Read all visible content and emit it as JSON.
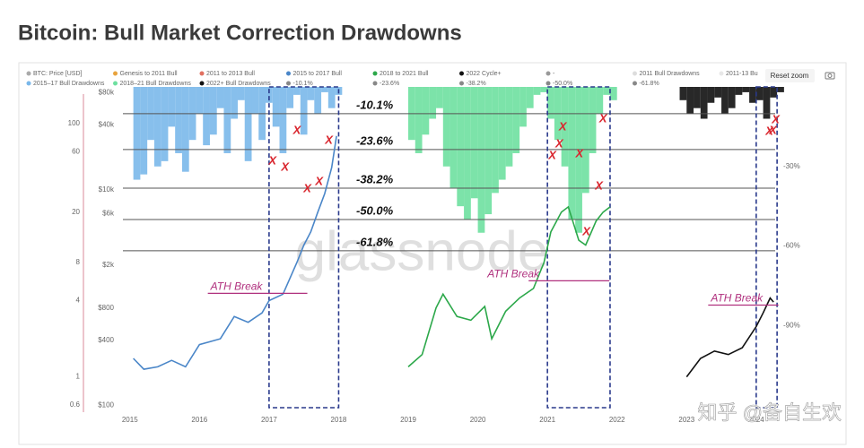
{
  "chart_data": {
    "type": "line",
    "title": "Bitcoin: Bull Market Correction Drawdowns",
    "reset_zoom": "Reset zoom",
    "watermark": "glassnode",
    "credit": "知乎 @备自生欢",
    "legend": [
      {
        "name": "BTC: Price [USD]",
        "color": "#aaaaaa"
      },
      {
        "name": "Genesis to 2011 Bull",
        "color": "#e8a33d"
      },
      {
        "name": "2011 to 2013 Bull",
        "color": "#e07060"
      },
      {
        "name": "2015 to 2017 Bull",
        "color": "#4a86c8"
      },
      {
        "name": "2018 to 2021 Bull",
        "color": "#2ca84a"
      },
      {
        "name": "2022 Cycle+",
        "color": "#111111"
      },
      {
        "name": "-",
        "color": "#999999"
      },
      {
        "name": "2011 Bull Drawdowns",
        "color": "#dddddd"
      },
      {
        "name": "2011-13 Bu",
        "color": "#e8e8e8"
      },
      {
        "name": "2015–17 Bull Drawdowns",
        "color": "#7ab8ea"
      },
      {
        "name": "2018–21 Bull Drawdowns",
        "color": "#6ee0a0"
      },
      {
        "name": "2022+ Bull Drawdowns",
        "color": "#111111"
      },
      {
        "name": "-10.1%",
        "color": "#888888"
      },
      {
        "name": "-23.6%",
        "color": "#888888"
      },
      {
        "name": "-38.2%",
        "color": "#888888"
      },
      {
        "name": "-50.0%",
        "color": "#888888"
      },
      {
        "name": "-61.8%",
        "color": "#888888"
      }
    ],
    "xlim": [
      2014.9,
      2024.35
    ],
    "xticks": [
      2015,
      2016,
      2017,
      2018,
      2019,
      2020,
      2021,
      2022,
      2023,
      2024
    ],
    "ylim": [
      90,
      90000
    ],
    "log_y": true,
    "yticks": [
      {
        "value": 80000,
        "label": "$80k"
      },
      {
        "value": 40000,
        "label": "$40k"
      },
      {
        "value": 10000,
        "label": "$10k"
      },
      {
        "value": 6000,
        "label": "$6k"
      },
      {
        "value": 2000,
        "label": "$2k"
      },
      {
        "value": 800,
        "label": "$800"
      },
      {
        "value": 400,
        "label": "$400"
      },
      {
        "value": 100,
        "label": "$100"
      }
    ],
    "y3lim": [
      0.544,
      195
    ],
    "y3ticks": [
      100,
      60,
      20,
      8,
      4,
      1,
      0.6
    ],
    "y2lim": [
      0,
      -122
    ],
    "y2ticks": [
      {
        "value": -30,
        "label": "-30%"
      },
      {
        "value": -60,
        "label": "-60%"
      },
      {
        "value": -90,
        "label": "-90%"
      }
    ],
    "levels": [
      {
        "value": -10.1,
        "label": "-10.1%"
      },
      {
        "value": -23.6,
        "label": "-23.6%"
      },
      {
        "value": -38.2,
        "label": "-38.2%"
      },
      {
        "value": -50,
        "label": "-50.0%"
      },
      {
        "value": -61.8,
        "label": "-61.8%"
      }
    ],
    "series": [
      {
        "legend": 9,
        "kind": "drawdown",
        "axis": "y2",
        "x": [
          2015.05,
          2015.15,
          2015.25,
          2015.35,
          2015.45,
          2015.55,
          2015.65,
          2015.75,
          2015.85,
          2015.95,
          2016.05,
          2016.15,
          2016.25,
          2016.35,
          2016.45,
          2016.55,
          2016.65,
          2016.75,
          2016.85,
          2016.95,
          2017.05,
          2017.15,
          2017.25,
          2017.35,
          2017.45,
          2017.55,
          2017.65,
          2017.75,
          2017.85,
          2017.95
        ],
        "values": [
          -35,
          -33,
          -20,
          -30,
          -28,
          -15,
          -25,
          -32,
          -20,
          -10,
          -22,
          -18,
          -8,
          -25,
          -12,
          -5,
          -28,
          -10,
          -20,
          -6,
          -15,
          -25,
          -8,
          -3,
          -18,
          -5,
          -10,
          -2,
          -8,
          -3
        ]
      },
      {
        "legend": 10,
        "kind": "drawdown",
        "axis": "y2",
        "x": [
          2019.0,
          2019.1,
          2019.2,
          2019.3,
          2019.4,
          2019.5,
          2019.6,
          2019.7,
          2019.8,
          2019.9,
          2020.0,
          2020.1,
          2020.2,
          2020.3,
          2020.4,
          2020.5,
          2020.6,
          2020.7,
          2020.8,
          2020.9,
          2021.0,
          2021.1,
          2021.2,
          2021.3,
          2021.4,
          2021.5,
          2021.6,
          2021.7,
          2021.8,
          2021.9
        ],
        "values": [
          -20,
          -25,
          -18,
          -12,
          -8,
          -30,
          -38,
          -45,
          -50,
          -42,
          -55,
          -48,
          -40,
          -35,
          -30,
          -25,
          -15,
          -8,
          -3,
          -2,
          -12,
          -20,
          -30,
          -50,
          -55,
          -40,
          -25,
          -10,
          -3,
          -5
        ]
      },
      {
        "legend": 11,
        "kind": "drawdown",
        "axis": "y2",
        "x": [
          2022.9,
          2023.0,
          2023.1,
          2023.2,
          2023.3,
          2023.4,
          2023.5,
          2023.6,
          2023.7,
          2023.8,
          2023.9,
          2024.0,
          2024.1,
          2024.2,
          2024.3
        ],
        "values": [
          -5,
          -10,
          -8,
          -12,
          -6,
          -4,
          -10,
          -8,
          -3,
          -2,
          -6,
          -5,
          -12,
          -4,
          -2
        ]
      },
      {
        "legend": 3,
        "kind": "line",
        "axis": "y3",
        "x": [
          2015.05,
          2015.2,
          2015.4,
          2015.6,
          2015.8,
          2016.0,
          2016.3,
          2016.5,
          2016.7,
          2016.9,
          2017.0,
          2017.2,
          2017.4,
          2017.5,
          2017.6,
          2017.7,
          2017.8,
          2017.9,
          2017.97
        ],
        "values": [
          1.4,
          1.15,
          1.2,
          1.35,
          1.2,
          1.8,
          2.0,
          3.0,
          2.7,
          3.2,
          4.0,
          4.5,
          8,
          11,
          14,
          20,
          28,
          45,
          80
        ]
      },
      {
        "legend": 4,
        "kind": "line",
        "axis": "y3",
        "x": [
          2019.0,
          2019.2,
          2019.4,
          2019.5,
          2019.7,
          2019.9,
          2020.1,
          2020.2,
          2020.4,
          2020.6,
          2020.8,
          2020.95,
          2021.05,
          2021.2,
          2021.3,
          2021.45,
          2021.55,
          2021.7,
          2021.8,
          2021.9
        ],
        "values": [
          1.2,
          1.5,
          3.5,
          4.5,
          3.0,
          2.8,
          3.6,
          2.0,
          3.3,
          4.2,
          5,
          8,
          14,
          20,
          22,
          12,
          11,
          17,
          20,
          22
        ]
      },
      {
        "legend": 5,
        "kind": "line",
        "axis": "y3",
        "x": [
          2023.0,
          2023.2,
          2023.4,
          2023.6,
          2023.8,
          2024.0,
          2024.1,
          2024.2,
          2024.25
        ],
        "values": [
          1.0,
          1.4,
          1.6,
          1.5,
          1.7,
          2.5,
          3.2,
          4.2,
          3.9
        ]
      }
    ],
    "highlight_ranges": [
      [
        2017,
        2018
      ],
      [
        2021,
        2021.9
      ],
      [
        2024,
        2024.3
      ]
    ],
    "ath_breaks": [
      {
        "label": "ATH Break",
        "x": [
          2016.12,
          2017.55
        ],
        "y": 4.57
      },
      {
        "label": "ATH Break",
        "x": [
          2020.73,
          2021.89
        ],
        "y": 5.74
      },
      {
        "label": "ATH Break",
        "x": [
          2023.31,
          2024.32
        ],
        "y": 3.69
      }
    ],
    "x_marker_label": "X",
    "x_markers": {
      "x": [
        2017.05,
        2017.23,
        2017.4,
        2017.55,
        2017.72,
        2017.86,
        2021.07,
        2021.17,
        2021.22,
        2021.46,
        2021.74,
        2021.8,
        2021.56,
        2024.28,
        2024.24,
        2024.19
      ],
      "y": [
        -28,
        -30.4,
        -16.6,
        -38.5,
        -35.8,
        -20.3,
        -26,
        -21.6,
        -15.2,
        -25.3,
        -37.5,
        -12.2,
        -54.7,
        -12.5,
        -16.6,
        -16.9
      ]
    }
  }
}
